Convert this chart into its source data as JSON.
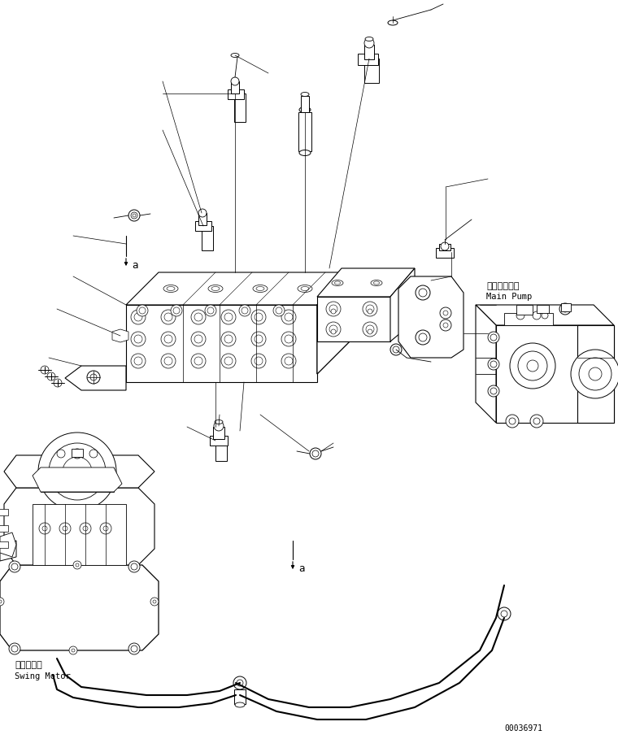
{
  "bg_color": "#ffffff",
  "fig_width": 7.6,
  "fig_height": 9.09,
  "dpi": 100,
  "label_main_pump_jp": "メインポンプ",
  "label_main_pump_en": "Main Pump",
  "label_swing_motor_jp": "旋回モータ",
  "label_swing_motor_en": "Swing Motor",
  "label_a": "a",
  "part_number": "00036971",
  "line_color": "#000000",
  "text_color": "#000000",
  "font_size_label": 7.5,
  "font_size_part": 7.0,
  "font_size_a": 9.0
}
